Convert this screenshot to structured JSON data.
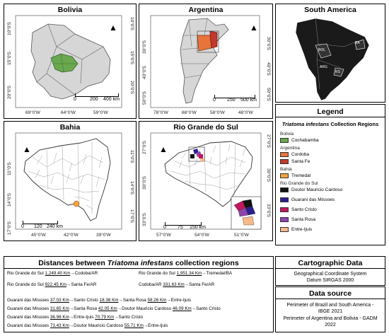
{
  "panels": {
    "bolivia": {
      "title": "Bolivia",
      "xcoords": [
        "69°0'W",
        "64°0'W",
        "59°0'W"
      ],
      "ycoords": [
        "10°0'S",
        "15°0'S",
        "20°0'S"
      ],
      "scale": [
        "0",
        "200",
        "400 km"
      ]
    },
    "argentina": {
      "title": "Argentina",
      "xcoords": [
        "78°0'W",
        "68°0'W",
        "58°0'W",
        "48°0'W"
      ],
      "ycoords": [
        "30°0'S",
        "40°0'S",
        "50°0'S"
      ],
      "scale": [
        "0",
        "250",
        "500 km"
      ]
    },
    "south_america": {
      "title": "South America",
      "labels": [
        "BA",
        "BOL",
        "ARG",
        "RS"
      ]
    },
    "bahia": {
      "title": "Bahia",
      "xcoords": [
        "45°0'W",
        "42°0'W",
        "39°0'W"
      ],
      "ycoords": [
        "11°0'S",
        "14°0'S",
        "17°0'S"
      ],
      "scale": [
        "0",
        "120",
        "240 km"
      ]
    },
    "rs": {
      "title": "Rio Grande do Sul",
      "xcoords": [
        "57°0'W",
        "54°0'W",
        "51°0'W"
      ],
      "ycoords": [
        "27°0'S",
        "30°0'S",
        "33°0'S"
      ],
      "scale": [
        "0",
        "75",
        "150 km"
      ]
    }
  },
  "legend": {
    "title": "Legend",
    "subtitle_italic": "Triatoma infestans",
    "subtitle_rest": " Collection Regions",
    "groups": [
      {
        "name": "Bolivia",
        "items": [
          {
            "label": "Cochabamba",
            "color": "#6aa84f"
          }
        ]
      },
      {
        "name": "Argentina",
        "items": [
          {
            "label": "Cordoba",
            "color": "#e8743b"
          },
          {
            "label": "Santa Fe",
            "color": "#c0392b"
          }
        ]
      },
      {
        "name": "Bahia",
        "items": [
          {
            "label": "Tremedal",
            "color": "#f4a340"
          }
        ]
      },
      {
        "name": "Rio Grande do Sul",
        "items": [
          {
            "label": "Doutor Mauricio Cardoso",
            "color": "#111111"
          },
          {
            "label": "Guarani das Missoes",
            "color": "#2b1f8f"
          },
          {
            "label": "Santo Cristo",
            "color": "#c2185b"
          },
          {
            "label": "Santa Rosa",
            "color": "#8e44ad"
          },
          {
            "label": "Entre-Ijuis",
            "color": "#f7b98a"
          }
        ]
      }
    ]
  },
  "distances": {
    "title_pre": "Distances between ",
    "title_italic": "Triatoma infestans",
    "title_post": " collection regions",
    "rows": [
      [
        "Rio Grande do Sul",
        "1,249.40 Km",
        "Codoba/AR"
      ],
      [
        "Rio Grande do Sul",
        "1,951.34 Km",
        "Tremedal/BA"
      ],
      [
        "Rio Grande do Sul",
        "922.45 Km",
        "Santa Fe/AR"
      ],
      [
        "Codoba/AR",
        "331.63 Km",
        "Santa Fe/AR"
      ]
    ],
    "chains": [
      [
        "Guarani das Missoes",
        "37.03 Km",
        "Santo Cristo",
        "18.36 Km",
        "Santa Rosa",
        "58.26 Km",
        "Entre-Ijuis"
      ],
      [
        "Guarani das Missoes",
        "31.65 Km",
        "Santa Rosa",
        "42.05 Km",
        "Doutor Mauricio Cardoso",
        "46.09 Km",
        "Santo Cristo"
      ],
      [
        "Guarani das Missoes",
        "36.96 Km",
        "Entre-Ijuis",
        "70.79 Km",
        "Santo Cristo"
      ],
      [
        "Guarani das Missoes",
        "73.43 Km",
        "Doutor Mauricio Cardoso",
        "55.71 Km",
        "Entre-Ijuis"
      ]
    ]
  },
  "cartographic": {
    "title": "Cartographic Data",
    "lines": [
      "Geographical Coordinate System",
      "Datum SIRGAS 2000"
    ]
  },
  "source": {
    "title": "Data source",
    "lines": [
      "Perimeter of Brazil and South America -",
      "IBGE 2021",
      "Perimeter of Argentina and Bolivia - GADM",
      "2022"
    ]
  },
  "arrow": "▲"
}
